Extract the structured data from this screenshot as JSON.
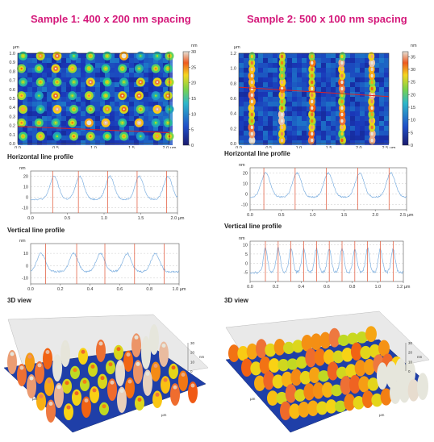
{
  "samples": [
    {
      "title": "Sample 1: 400 x 200 nm spacing",
      "map": {
        "unit": "µm",
        "x_ticks": [
          "0.0",
          "0.5",
          "1.0",
          "1.5",
          "2.0 µm"
        ],
        "y_ticks": [
          "0.0",
          "0.1",
          "0.2",
          "0.3",
          "0.4",
          "0.5",
          "0.6",
          "0.7",
          "0.8",
          "0.9",
          "1.0 µm"
        ],
        "colorbar_unit": "nm",
        "colorbar_ticks": [
          "0",
          "5",
          "10",
          "15",
          "20",
          "25",
          "30"
        ]
      },
      "sections": {
        "horizontal": "Horizontal line profile",
        "vertical": "Vertical line profile",
        "view3d": "3D view"
      },
      "hprofile": {
        "unit": "nm",
        "y_ticks": [
          "20",
          "10",
          "0",
          "-10"
        ],
        "x_ticks": [
          "0.0",
          "0.5",
          "1.0",
          "1.5",
          "2.0 µm"
        ]
      },
      "vprofile": {
        "unit": "nm",
        "y_ticks": [
          "10",
          "0",
          "-10"
        ],
        "x_ticks": [
          "0.0",
          "0.2",
          "0.4",
          "0.6",
          "0.8",
          "1.0 µm"
        ]
      },
      "view3d": {
        "z_ticks": [
          "30",
          "20",
          "10",
          "0"
        ],
        "z_unit": "nm",
        "axis_unit": "µm"
      }
    },
    {
      "title": "Sample 2: 500 x 100 nm spacing",
      "map": {
        "unit": "µm",
        "x_ticks": [
          "0.0",
          "0.5",
          "1.0",
          "1.5",
          "2.0",
          "2.5 µm"
        ],
        "y_ticks": [
          "0.0",
          "0.2",
          "0.4",
          "0.6",
          "0.8",
          "1.0",
          "1.2 µm"
        ],
        "colorbar_unit": "nm",
        "colorbar_ticks": [
          "0",
          "5",
          "10",
          "15",
          "20",
          "25",
          "30",
          "35"
        ]
      },
      "sections": {
        "horizontal": "Horizontal line profile",
        "vertical": "Vertical line profile",
        "view3d": "3D view"
      },
      "hprofile": {
        "unit": "nm",
        "y_ticks": [
          "20",
          "10",
          "0",
          "-10"
        ],
        "x_ticks": [
          "0.0",
          "0.5",
          "1.0",
          "1.5",
          "2.0",
          "2.5 µm"
        ]
      },
      "vprofile": {
        "unit": "nm",
        "y_ticks": [
          "10",
          "5",
          "0",
          "-5"
        ],
        "x_ticks": [
          "0.0",
          "0.2",
          "0.4",
          "0.6",
          "0.8",
          "1.0",
          "1.2 µm"
        ]
      },
      "view3d": {
        "z_ticks": [
          "30",
          "20",
          "10",
          "0"
        ],
        "z_unit": "nm",
        "axis_unit": "µm"
      }
    }
  ],
  "chart_data": [
    {
      "type": "heatmap",
      "xlim": [
        0,
        2.0
      ],
      "ylim": [
        0,
        1.0
      ],
      "zlim": [
        0,
        30
      ],
      "rows": [
        0.08,
        0.23,
        0.38,
        0.53,
        0.68,
        0.83,
        0.97
      ],
      "cols": [
        0.05,
        0.28,
        0.5,
        0.72,
        0.94,
        1.16,
        1.38,
        1.6,
        1.82,
        1.98
      ],
      "line": {
        "x": [
          0,
          2.0
        ],
        "y": [
          0.19,
          0.12
        ]
      }
    },
    {
      "type": "line",
      "xlim": [
        0,
        2.0
      ],
      "ylim": [
        -15,
        25
      ],
      "peaks_x": [
        0.32,
        0.67,
        1.08,
        1.48,
        1.87
      ],
      "peak_height": 20,
      "baseline": -2,
      "markers_x": [
        0.3,
        0.65,
        1.05,
        1.45,
        1.85
      ]
    },
    {
      "type": "line",
      "xlim": [
        0,
        1.0
      ],
      "ylim": [
        -15,
        18
      ],
      "peaks_x": [
        0.07,
        0.29,
        0.47,
        0.65,
        0.84
      ],
      "peak_height": 10,
      "baseline": -5,
      "markers_x": [
        0.1,
        0.31,
        0.5,
        0.7,
        0.9
      ]
    },
    {
      "type": "heatmap",
      "xlim": [
        0,
        2.5
      ],
      "ylim": [
        0,
        1.25
      ],
      "zlim": [
        0,
        37
      ],
      "stripe_x": [
        0.22,
        0.72,
        1.22,
        1.72,
        2.22
      ],
      "line": {
        "x": [
          0,
          2.5
        ],
        "y": [
          0.78,
          0.65
        ]
      }
    },
    {
      "type": "line",
      "xlim": [
        0,
        2.5
      ],
      "ylim": [
        -15,
        25
      ],
      "peaks_x": [
        0.25,
        0.75,
        1.25,
        1.75,
        2.25
      ],
      "peak_height": 20,
      "baseline": -3,
      "markers_x": [
        0.22,
        0.72,
        1.22,
        1.72,
        2.22
      ]
    },
    {
      "type": "line",
      "xlim": [
        0,
        1.2
      ],
      "ylim": [
        -10,
        12
      ],
      "peaks_x": [
        0.12,
        0.22,
        0.32,
        0.42,
        0.52,
        0.62,
        0.72,
        0.82,
        0.92,
        1.02,
        1.12
      ],
      "peak_height": 8,
      "baseline": -5,
      "markers_x": [
        0.12,
        0.22,
        0.32,
        0.42,
        0.52,
        0.62,
        0.72,
        0.82,
        0.92,
        1.02,
        1.12
      ]
    }
  ]
}
